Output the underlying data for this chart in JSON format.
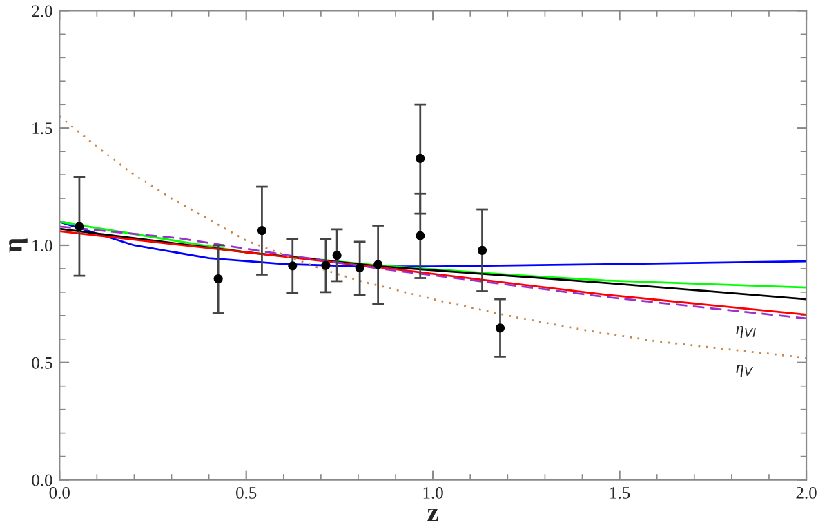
{
  "chart_data": {
    "type": "line",
    "xlabel": "z",
    "ylabel": "η",
    "xlim": [
      0,
      2
    ],
    "ylim": [
      0,
      2
    ],
    "xticks": [
      {
        "value": 0,
        "label": "0.0"
      },
      {
        "value": 0.5,
        "label": "0.5"
      },
      {
        "value": 1,
        "label": "1.0"
      },
      {
        "value": 1.5,
        "label": "1.5"
      },
      {
        "value": 2,
        "label": "2.0"
      }
    ],
    "yticks": [
      {
        "value": 0,
        "label": "0.0"
      },
      {
        "value": 0.5,
        "label": "0.5"
      },
      {
        "value": 1,
        "label": "1.0"
      },
      {
        "value": 1.5,
        "label": "1.5"
      },
      {
        "value": 2,
        "label": "2.0"
      }
    ],
    "grid": false,
    "legend": false,
    "series": [
      {
        "type": "line",
        "color": "#0000ff",
        "line_style": "solid",
        "x": [
          0,
          0.2,
          0.4,
          0.6,
          0.8,
          1.0,
          1.5,
          2.0
        ],
        "values": [
          1.1,
          1.0,
          0.945,
          0.92,
          0.91,
          0.91,
          0.92,
          0.932
        ]
      },
      {
        "type": "line",
        "color": "#00ff00",
        "line_style": "solid",
        "x": [
          0,
          0.5,
          0.85,
          1.2,
          1.46,
          2.0
        ],
        "values": [
          1.1,
          0.97,
          0.915,
          0.875,
          0.85,
          0.82
        ]
      },
      {
        "type": "line",
        "color": "#000000",
        "line_style": "solid",
        "x": [
          0,
          0.5,
          0.86,
          1.46,
          2.0
        ],
        "values": [
          1.07,
          0.97,
          0.91,
          0.84,
          0.77
        ]
      },
      {
        "type": "line",
        "color": "#ff0000",
        "line_style": "solid",
        "x": [
          0,
          0.5,
          0.86,
          1.46,
          2.0
        ],
        "values": [
          1.06,
          0.97,
          0.905,
          0.79,
          0.704
        ]
      },
      {
        "type": "line",
        "color": "#9932cc",
        "line_style": "dashed",
        "x": [
          0,
          0.32,
          0.6,
          0.86,
          1.46,
          2.0
        ],
        "values": [
          1.08,
          1.03,
          0.96,
          0.9,
          0.78,
          0.688
        ]
      },
      {
        "type": "line",
        "color": "#c8864a",
        "line_style": "dotted",
        "x": [
          0,
          0.1,
          0.2,
          0.3,
          0.4,
          0.5,
          0.6,
          0.7,
          0.8,
          0.9,
          1.0,
          1.2,
          1.4,
          1.6,
          1.8,
          2.0
        ],
        "values": [
          1.55,
          1.42,
          1.3,
          1.2,
          1.11,
          1.02,
          0.96,
          0.9,
          0.85,
          0.81,
          0.77,
          0.7,
          0.64,
          0.59,
          0.555,
          0.52
        ]
      },
      {
        "type": "scatter",
        "color": "#000000",
        "marker": "circle",
        "x": [
          0.053,
          0.425,
          0.542,
          0.624,
          0.713,
          0.743,
          0.804,
          0.853,
          0.966,
          0.966,
          1.132,
          1.18
        ],
        "values": [
          1.08,
          0.857,
          1.063,
          0.912,
          0.914,
          0.957,
          0.904,
          0.918,
          1.37,
          1.041,
          0.978,
          0.647
        ],
        "errors": [
          [
            0.87,
            1.29
          ],
          [
            0.71,
            1.0
          ],
          [
            0.875,
            1.25
          ],
          [
            0.796,
            1.026
          ],
          [
            0.8,
            1.026
          ],
          [
            0.847,
            1.068
          ],
          [
            0.788,
            1.015
          ],
          [
            0.75,
            1.084
          ],
          [
            1.135,
            1.6
          ],
          [
            0.86,
            1.22
          ],
          [
            0.804,
            1.153
          ],
          [
            0.525,
            0.77
          ]
        ]
      }
    ],
    "annotations": [
      {
        "text": "η$_{VI}$",
        "x": 1.8,
        "y": 0.72
      },
      {
        "text": "η$_{V}$",
        "x": 1.8,
        "y": 0.555
      }
    ]
  }
}
